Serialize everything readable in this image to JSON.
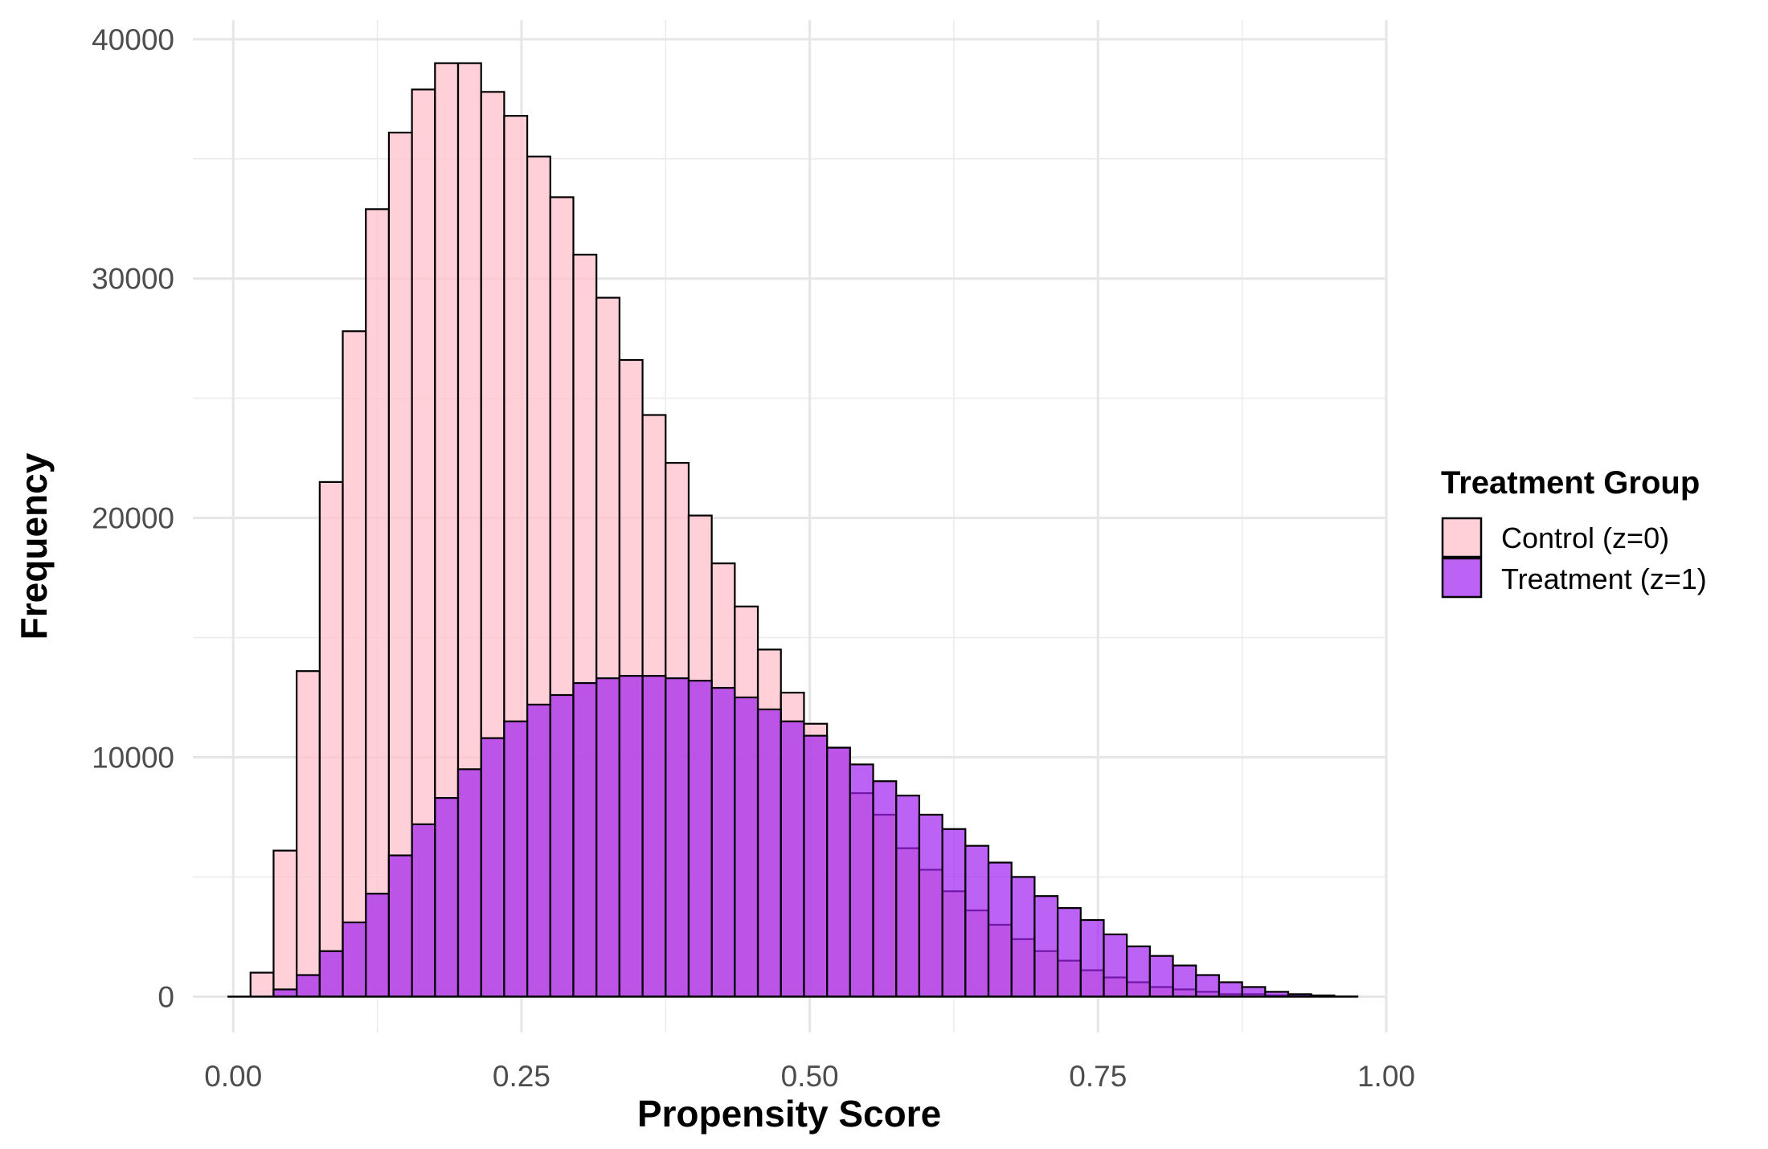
{
  "chart_data": {
    "type": "bar",
    "title": "",
    "xlabel": "Propensity Score",
    "ylabel": "Frequency",
    "xlim": [
      -0.035,
      1.0
    ],
    "ylim": [
      -1500,
      40800
    ],
    "grid": true,
    "x_ticks": [
      0.0,
      0.25,
      0.5,
      0.75,
      1.0
    ],
    "x_tick_labels": [
      "0.00",
      "0.25",
      "0.50",
      "0.75",
      "1.00"
    ],
    "y_ticks": [
      0,
      10000,
      20000,
      30000,
      40000
    ],
    "y_tick_labels": [
      "0",
      "10000",
      "20000",
      "30000",
      "40000"
    ],
    "bin_width": 0.02,
    "bin_start": -0.005,
    "legend": {
      "title": "Treatment Group",
      "position": "right"
    },
    "series": [
      {
        "name": "Control (z=0)",
        "color": "#FFC0CB",
        "values": [
          0,
          1000,
          6100,
          13600,
          21500,
          27800,
          32900,
          36100,
          37900,
          39000,
          39000,
          37800,
          36800,
          35100,
          33400,
          31000,
          29200,
          26600,
          24300,
          22300,
          20100,
          18100,
          16300,
          14500,
          12700,
          11400,
          10400,
          8500,
          7600,
          6200,
          5300,
          4400,
          3600,
          3000,
          2400,
          1900,
          1500,
          1100,
          800,
          600,
          400,
          300,
          200,
          100,
          100,
          50,
          20,
          10,
          0
        ]
      },
      {
        "name": "Treatment (z=1)",
        "color": "#A020F0",
        "values": [
          0,
          0,
          300,
          900,
          1900,
          3100,
          4300,
          5900,
          7200,
          8300,
          9500,
          10800,
          11500,
          12200,
          12600,
          13100,
          13300,
          13400,
          13400,
          13300,
          13200,
          12900,
          12500,
          12000,
          11500,
          10900,
          10400,
          9700,
          9000,
          8400,
          7600,
          7000,
          6300,
          5600,
          5000,
          4200,
          3700,
          3200,
          2600,
          2100,
          1700,
          1300,
          900,
          600,
          400,
          200,
          100,
          50,
          10
        ]
      }
    ]
  }
}
